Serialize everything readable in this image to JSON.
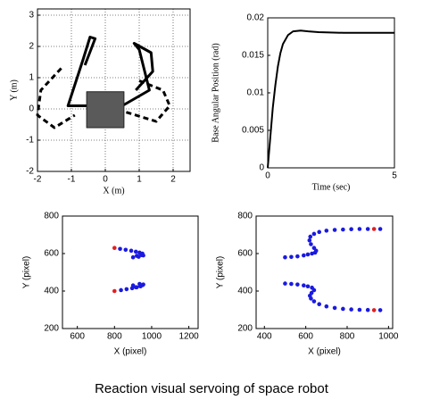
{
  "chart_data": [
    {
      "type": "line",
      "xlabel": "X (m)",
      "ylabel": "Y (m)",
      "grid": true,
      "xlim": [
        -2,
        2.5
      ],
      "ylim": [
        -2,
        3.2
      ],
      "xticks": [
        -2,
        -1,
        0,
        1,
        2
      ],
      "yticks": [
        -2,
        -1,
        0,
        1,
        2,
        3
      ],
      "series": [
        {
          "color": "#000",
          "line_style": "solid",
          "x": [
            -0.5,
            -1.1,
            -0.65,
            -0.45,
            -0.3,
            -0.6
          ],
          "values": [
            0.1,
            0.1,
            1.6,
            2.3,
            2.25,
            1.4
          ]
        },
        {
          "color": "#000",
          "line_style": "solid",
          "x": [
            0.5,
            1.3,
            1.0,
            0.85,
            1.35,
            1.4,
            0.9
          ],
          "values": [
            0.1,
            0.6,
            1.9,
            2.1,
            1.8,
            1.2,
            0.6
          ]
        },
        {
          "color": "#000",
          "line_style": "dashed",
          "x": [
            -1.3,
            -1.9,
            -2.0,
            -1.5,
            -0.9
          ],
          "values": [
            1.3,
            0.6,
            -0.2,
            -0.6,
            -0.2
          ]
        },
        {
          "color": "#000",
          "line_style": "dashed",
          "x": [
            1.0,
            1.7,
            1.9,
            1.5,
            0.6
          ],
          "values": [
            0.9,
            0.6,
            0.1,
            -0.4,
            -0.1
          ]
        },
        {
          "color": "#222",
          "fill": "#5a5a5a",
          "line_style": "solid",
          "x": [
            -0.55,
            0.55,
            0.55,
            -0.55,
            -0.55
          ],
          "values": [
            0.55,
            0.55,
            -0.6,
            -0.6,
            0.55
          ]
        }
      ]
    },
    {
      "type": "line",
      "xlabel": "Time (sec)",
      "ylabel": "Base Angular Position (rad)",
      "grid": false,
      "xlim": [
        0,
        5
      ],
      "ylim": [
        0,
        0.02
      ],
      "xticks": [
        0,
        5
      ],
      "yticks": [
        0,
        0.005,
        0.01,
        0.015,
        0.02
      ],
      "series": [
        {
          "color": "#000",
          "line_style": "solid",
          "x": [
            0,
            0.1,
            0.2,
            0.3,
            0.4,
            0.5,
            0.6,
            0.8,
            1.0,
            1.3,
            1.6,
            2,
            3,
            4,
            5
          ],
          "values": [
            0,
            0.004,
            0.008,
            0.011,
            0.0135,
            0.0153,
            0.0165,
            0.0177,
            0.0182,
            0.0183,
            0.0182,
            0.0181,
            0.018,
            0.018,
            0.018
          ]
        }
      ]
    },
    {
      "type": "scatter",
      "xlabel": "X (pixel)",
      "ylabel": "Y (pixel)",
      "grid": false,
      "xlim": [
        520,
        1250
      ],
      "ylim": [
        200,
        800
      ],
      "xticks": [
        600,
        800,
        1000,
        1200
      ],
      "yticks": [
        200,
        400,
        600,
        800
      ],
      "series": [
        {
          "color": "#1a1adf",
          "x": [
            830,
            860,
            890,
            915,
            935,
            950,
            945,
            920,
            900,
            930,
            955,
            835,
            865,
            895,
            920,
            940,
            952,
            940,
            915,
            900,
            935,
            955
          ],
          "values": [
            625,
            620,
            615,
            610,
            605,
            600,
            592,
            588,
            580,
            583,
            590,
            405,
            410,
            415,
            420,
            428,
            432,
            425,
            420,
            430,
            438,
            435
          ]
        },
        {
          "color": "#e02020",
          "x": [
            800,
            800
          ],
          "values": [
            630,
            400
          ]
        }
      ]
    },
    {
      "type": "scatter",
      "xlabel": "X (pixel)",
      "ylabel": "Y (pixel)",
      "grid": false,
      "xlim": [
        360,
        1020
      ],
      "ylim": [
        200,
        800
      ],
      "xticks": [
        400,
        600,
        800,
        1000
      ],
      "yticks": [
        200,
        400,
        600,
        800
      ],
      "series": [
        {
          "color": "#1a1adf",
          "x": [
            500,
            530,
            560,
            590,
            610,
            630,
            645,
            650,
            640,
            625,
            618,
            622,
            640,
            665,
            700,
            740,
            780,
            820,
            860,
            900,
            960,
            500,
            530,
            560,
            590,
            610,
            630,
            640,
            628,
            620,
            625,
            640,
            665,
            700,
            740,
            780,
            820,
            860,
            900,
            960
          ],
          "values": [
            580,
            582,
            585,
            590,
            595,
            600,
            605,
            615,
            630,
            650,
            670,
            690,
            705,
            715,
            722,
            726,
            728,
            730,
            731,
            731,
            731,
            440,
            438,
            435,
            430,
            425,
            418,
            405,
            390,
            375,
            360,
            345,
            330,
            318,
            310,
            305,
            302,
            300,
            299,
            298
          ]
        },
        {
          "color": "#e02020",
          "x": [
            930,
            930
          ],
          "values": [
            731,
            298
          ]
        }
      ]
    }
  ],
  "caption": "Reaction visual servoing of space robot"
}
